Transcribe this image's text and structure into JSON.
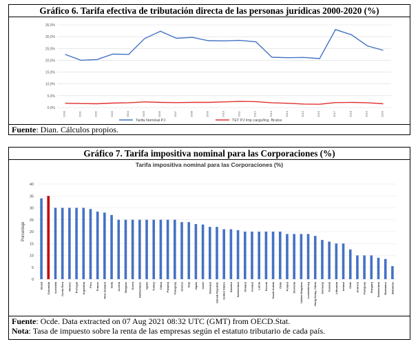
{
  "figure1": {
    "header": "Gráfico 6. Tarifa efectiva de tributación directa de las personas jurídicas 2000-2020 (%)",
    "source_label": "Fuente",
    "source_text": ": Dian. Cálculos propios.",
    "chart_data": {
      "type": "line",
      "title": "",
      "x": [
        "2000",
        "2001",
        "2002",
        "2003",
        "2004",
        "2005",
        "2006",
        "2007",
        "2008",
        "2009",
        "2010",
        "2011",
        "2012",
        "2013",
        "2014",
        "2015",
        "2016",
        "2017",
        "2018",
        "2019",
        "2020"
      ],
      "ylim": [
        0,
        35
      ],
      "y_ticks": [
        "0,0%",
        "5,0%",
        "10,0%",
        "15,0%",
        "20,0%",
        "25,0%",
        "30,0%",
        "35,0%"
      ],
      "series": [
        {
          "name": "Tarifa Nominal PJ",
          "color": "#4472C4",
          "values": [
            22.5,
            20.0,
            20.3,
            22.6,
            22.5,
            29.2,
            32.3,
            29.3,
            29.7,
            28.3,
            28.2,
            28.4,
            27.8,
            21.3,
            21.1,
            21.2,
            20.7,
            33.0,
            30.8,
            26.1,
            24.2
          ]
        },
        {
          "name": "TET PJ Imp cargo/Ing. Brutos",
          "color": "#E0302E",
          "values": [
            1.8,
            1.7,
            1.6,
            1.9,
            2.0,
            2.4,
            2.2,
            2.1,
            2.2,
            2.2,
            2.4,
            2.6,
            2.5,
            2.0,
            1.8,
            1.5,
            1.4,
            2.1,
            2.2,
            2.0,
            1.6
          ]
        }
      ],
      "legend": "bottom",
      "grid": true
    }
  },
  "figure2": {
    "header": "Gráfico 7. Tarifa impositiva nominal para las Corporaciones (%)",
    "source_label": "Fuente",
    "source_text": ": Ocde. Data extracted on 07 Aug 2021 08:32 UTC (GMT) from OECD.Stat.",
    "note_label": "Nota",
    "note_text": ": Tasa de impuesto sobre la renta de las empresas según el estatuto tributario de cada país.",
    "chart_data": {
      "type": "bar",
      "title": "Tarifa impositiva nominal para las Corporaciones (%)",
      "ylabel": "Porcentaje",
      "ylim": [
        0,
        40
      ],
      "y_ticks": [
        "0",
        "5",
        "10",
        "15",
        "20",
        "25",
        "30",
        "35",
        "40"
      ],
      "categories": [
        "Brazil",
        "Colombia",
        "Australia",
        "Costa Rica",
        "Mexico",
        "Portugal",
        "Argentina",
        "Peru",
        "France",
        "New Zealand",
        "India",
        "Austria",
        "Belgium",
        "Korea",
        "Netherlands",
        "Spain",
        "Turkey",
        "China",
        "Panama",
        "Paraguay",
        "Greece",
        "Italy",
        "Japan",
        "Israel",
        "Denmark",
        "Slovak Republic",
        "United States",
        "Sweden",
        "Switzerland",
        "Finland",
        "Iceland",
        "Latvia",
        "Russia",
        "Saudi Arabia",
        "Chile",
        "Poland",
        "Slovenia",
        "United Kingdom",
        "Luxembourg",
        "Hong Kong, China",
        "Germany",
        "Canada",
        "Lithuania",
        "Ireland",
        "Chile",
        "Andorra",
        "Paraguay",
        "Hungary",
        "Switzerland",
        "Barbados",
        "Bahamas"
      ],
      "values": [
        34,
        35,
        30,
        30,
        30,
        30,
        30,
        29.5,
        28.4,
        28,
        27,
        25,
        25,
        25,
        25,
        25,
        25,
        25,
        25,
        25,
        24,
        24,
        23.2,
        23,
        22,
        22,
        21,
        21,
        20.6,
        20,
        20,
        20,
        20,
        20,
        20,
        19,
        19,
        19,
        19,
        18.2,
        16.5,
        15.8,
        15,
        15,
        12.5,
        10,
        10,
        10,
        9,
        8.5,
        5.5
      ],
      "colors": {
        "default": "#4472C4",
        "highlight": "#C00000",
        "highlight_index": 1
      },
      "grid": true
    }
  }
}
